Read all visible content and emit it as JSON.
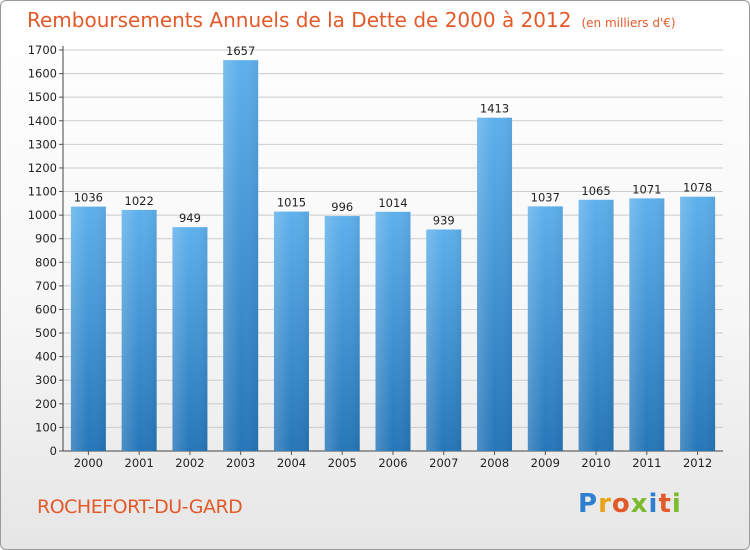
{
  "title": "Remboursements Annuels de la Dette de 2000 à 2012",
  "unit": "(en milliers d'€)",
  "commune": "ROCHEFORT-DU-GARD",
  "logo": {
    "text": "Proxiti",
    "colors": [
      "#2f7fd1",
      "#e8a317",
      "#e35a2a",
      "#7cbb2c",
      "#2f7fd1",
      "#e35a2a",
      "#7cbb2c"
    ]
  },
  "colors": {
    "accent": "#e35a2a",
    "bar_top": "#5eb0ec",
    "bar_bottom": "#2676b8",
    "grid": "#cccccc"
  },
  "chart_data": {
    "type": "bar",
    "categories": [
      "2000",
      "2001",
      "2002",
      "2003",
      "2004",
      "2005",
      "2006",
      "2007",
      "2008",
      "2009",
      "2010",
      "2011",
      "2012"
    ],
    "values": [
      1036,
      1022,
      949,
      1657,
      1015,
      996,
      1014,
      939,
      1413,
      1037,
      1065,
      1071,
      1078
    ],
    "title": "Remboursements Annuels de la Dette de 2000 à 2012",
    "ylim": [
      0,
      1700
    ],
    "yticks": [
      0,
      100,
      200,
      300,
      400,
      500,
      600,
      700,
      800,
      900,
      1000,
      1100,
      1200,
      1300,
      1400,
      1500,
      1600,
      1700
    ],
    "grid": true,
    "data_labels": true
  }
}
